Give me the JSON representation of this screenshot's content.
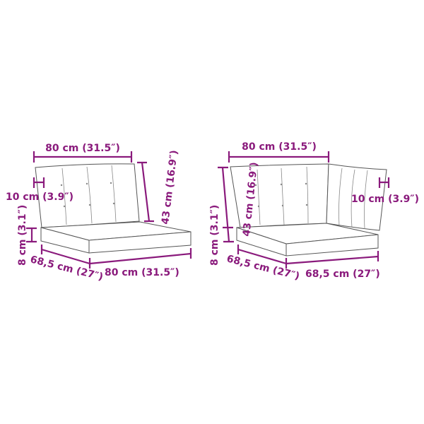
{
  "colors": {
    "dimension": "#8a1a7c",
    "outline": "#555555"
  },
  "left_item": {
    "width_top": "80 cm (31.5″)",
    "back_thickness": "10 cm (3.9″)",
    "back_height": "43 cm (16.9″)",
    "seat_height": "8 cm (3.1″)",
    "depth": "68,5 cm (27″)",
    "width_bottom": "80 cm (31.5″)"
  },
  "right_item": {
    "width_top": "80 cm (31.5″)",
    "back_thickness": "10 cm (3.9″)",
    "back_height": "43 cm (16.9″)",
    "seat_height": "8 cm (3.1″)",
    "depth": "68,5 cm (27″)",
    "width_bottom": "68,5 cm (27″)"
  }
}
